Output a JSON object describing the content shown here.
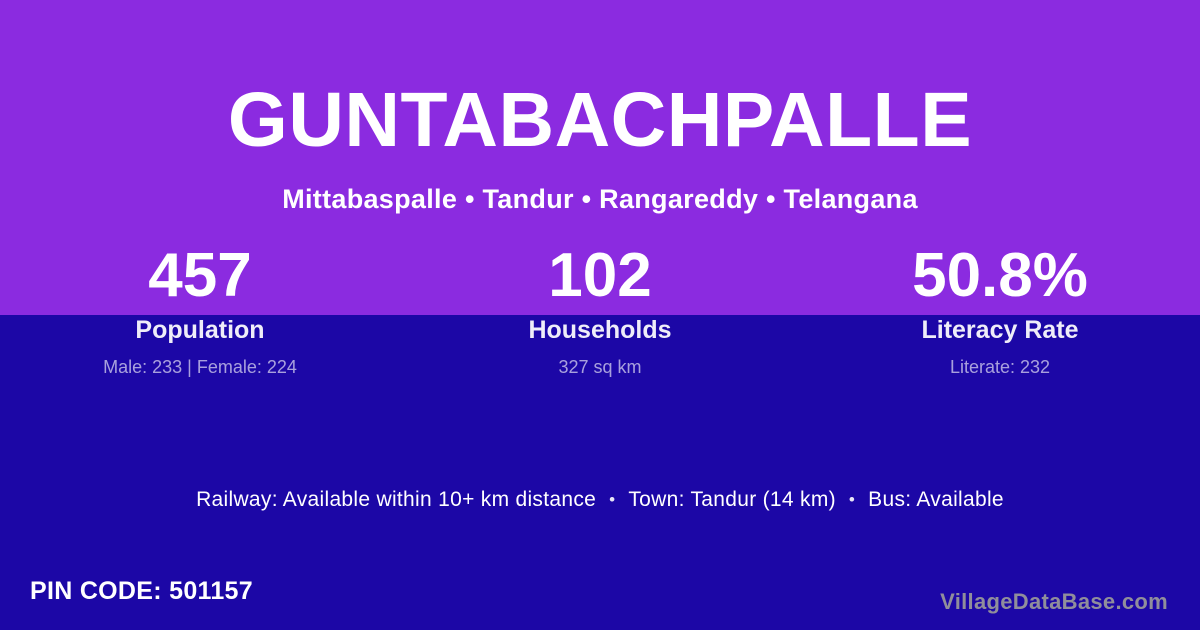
{
  "colors": {
    "top_background": "#8B2BE0",
    "bottom_background": "#1C07A6",
    "primary_text": "#FFFFFF",
    "muted_text": "#B3A8E2",
    "watermark_text": "#908E9B"
  },
  "header": {
    "village_name": "GUNTABACHPALLE",
    "breadcrumb": "Mittabaspalle • Tandur • Rangareddy • Telangana"
  },
  "stats": [
    {
      "value": "457",
      "label": "Population",
      "detail": "Male: 233 | Female: 224"
    },
    {
      "value": "102",
      "label": "Households",
      "detail": "327 sq km"
    },
    {
      "value": "50.8%",
      "label": "Literacy Rate",
      "detail": "Literate: 232"
    }
  ],
  "transport": {
    "separator": "•",
    "segments": [
      "Railway: Available within 10+ km distance",
      "Town: Tandur (14 km)",
      "Bus: Available"
    ]
  },
  "footer": {
    "pin_code": "PIN CODE: 501157",
    "watermark": "VillageDataBase.com"
  }
}
